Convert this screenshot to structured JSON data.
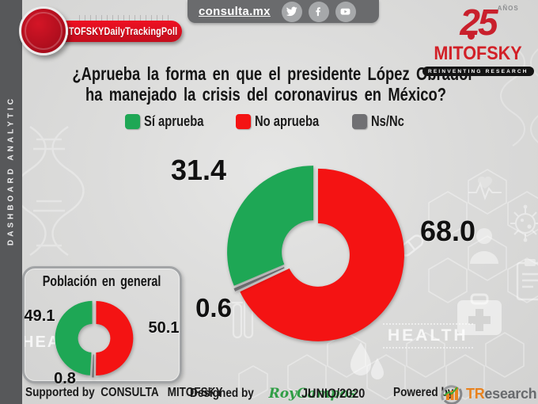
{
  "topbar": {
    "site": "consulta.mx",
    "social": [
      "twitter",
      "facebook",
      "youtube"
    ]
  },
  "ribbon": {
    "label": "#MITOFSKYDailyTrackingPoll"
  },
  "logo": {
    "years": "25",
    "years_suffix": "AÑOS",
    "name": "MITOFSKY",
    "tagline": "REINVENTING RESEARCH"
  },
  "sidebar": {
    "label": "DASHBOARD ANALYTIC"
  },
  "question": {
    "line1": "¿Aprueba la forma en que el presidente López Obrador",
    "line2": "ha manejado la crisis del coronavirus en México?"
  },
  "legend": [
    {
      "label": "Sí aprueba",
      "color": "#1ea755"
    },
    {
      "label": "No aprueba",
      "color": "#f41313"
    },
    {
      "label": "Ns/Nc",
      "color": "#707073"
    }
  ],
  "chart_data": [
    {
      "type": "pie",
      "subtype": "donut",
      "title": "¿Aprueba la forma en que el presidente López Obrador ha manejado la crisis del coronavirus en México?",
      "unit": "percent",
      "order": "clockwise-from-top",
      "slices": [
        {
          "label": "No aprueba",
          "value": "68.0",
          "color": "#f41313"
        },
        {
          "label": "Ns/Nc",
          "value": "0.6",
          "color": "#707073"
        },
        {
          "label": "Sí aprueba",
          "value": "31.4",
          "color": "#1ea755"
        }
      ]
    },
    {
      "type": "pie",
      "subtype": "donut",
      "title": "Población en general",
      "unit": "percent",
      "order": "clockwise-from-top",
      "slices": [
        {
          "label": "No aprueba",
          "value": "50.1",
          "color": "#f41313"
        },
        {
          "label": "Ns/Nc",
          "value": "0.8",
          "color": "#707073"
        },
        {
          "label": "Sí aprueba",
          "value": "49.1",
          "color": "#1ea755"
        }
      ]
    }
  ],
  "inset": {
    "title": "Población en general"
  },
  "footer": {
    "supported": "Supported by  CONSULTA   MITOFSKY",
    "designed_prefix": "Designed by ",
    "designer": "RoyCampos",
    "date": "JUNIO/2020",
    "powered_prefix": "Powered by",
    "brand_tr": "TR",
    "brand_rest": "esearch"
  },
  "background": {
    "watermarks": [
      "HEAL",
      "HEALTH"
    ]
  }
}
